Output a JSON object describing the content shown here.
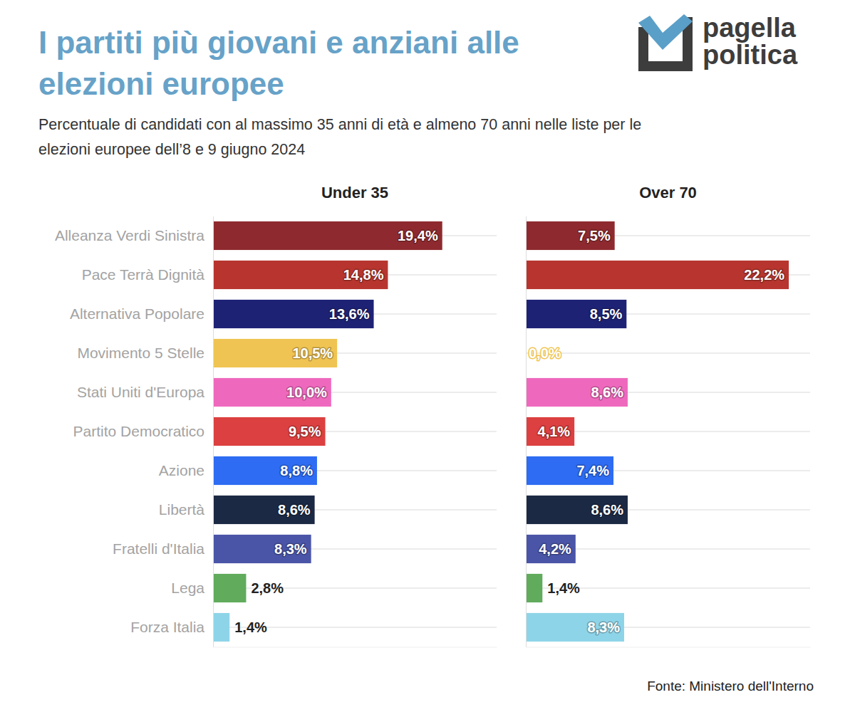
{
  "title": [
    "I partiti più giovani e anziani alle",
    "elezioni europee"
  ],
  "subtitle": [
    "Percentuale di candidati con al massimo 35 anni di età e almeno 70 anni nelle liste per le",
    "elezioni europee dell’8 e 9 giugno 2024"
  ],
  "logo": [
    "pagella",
    "politica"
  ],
  "source": "Fonte: Ministero dell'Interno",
  "chart_data": [
    {
      "type": "bar",
      "orientation": "horizontal",
      "title": "Under 35",
      "categories": [
        "Alleanza Verdi Sinistra",
        "Pace Terrà Dignità",
        "Alternativa Popolare",
        "Movimento 5 Stelle",
        "Stati Uniti d'Europa",
        "Partito Democratico",
        "Azione",
        "Libertà",
        "Fratelli d'Italia",
        "Lega",
        "Forza Italia"
      ],
      "values": [
        19.4,
        14.8,
        13.6,
        10.5,
        10.0,
        9.5,
        8.8,
        8.6,
        8.3,
        2.8,
        1.4
      ],
      "value_labels": [
        "19,4%",
        "14,8%",
        "13,6%",
        "10,5%",
        "10,0%",
        "9,5%",
        "8,8%",
        "8,6%",
        "8,3%",
        "2,8%",
        "1,4%"
      ],
      "colors": [
        "#8e2a2f",
        "#b7352e",
        "#1e2275",
        "#f0c452",
        "#ee69bd",
        "#dc4040",
        "#2d6cf3",
        "#1c2944",
        "#4a55a8",
        "#60ab5c",
        "#8ed4e8"
      ],
      "xlim": [
        0,
        24
      ],
      "grid": true,
      "data_labels": true,
      "tick_labels": "y"
    },
    {
      "type": "bar",
      "orientation": "horizontal",
      "title": "Over 70",
      "categories": [
        "Alleanza Verdi Sinistra",
        "Pace Terrà Dignità",
        "Alternativa Popolare",
        "Movimento 5 Stelle",
        "Stati Uniti d'Europa",
        "Partito Democratico",
        "Azione",
        "Libertà",
        "Fratelli d'Italia",
        "Lega",
        "Forza Italia"
      ],
      "values": [
        7.5,
        22.2,
        8.5,
        0.0,
        8.6,
        4.1,
        7.4,
        8.6,
        4.2,
        1.4,
        8.3
      ],
      "value_labels": [
        "7,5%",
        "22,2%",
        "8,5%",
        "0,0%",
        "8,6%",
        "4,1%",
        "7,4%",
        "8,6%",
        "4,2%",
        "1,4%",
        "8,3%"
      ],
      "colors": [
        "#8e2a2f",
        "#b7352e",
        "#1e2275",
        "#f0c452",
        "#ee69bd",
        "#dc4040",
        "#2d6cf3",
        "#1c2944",
        "#4a55a8",
        "#60ab5c",
        "#8ed4e8"
      ],
      "xlim": [
        0,
        24
      ],
      "grid": true,
      "data_labels": true,
      "tick_labels": false
    }
  ]
}
